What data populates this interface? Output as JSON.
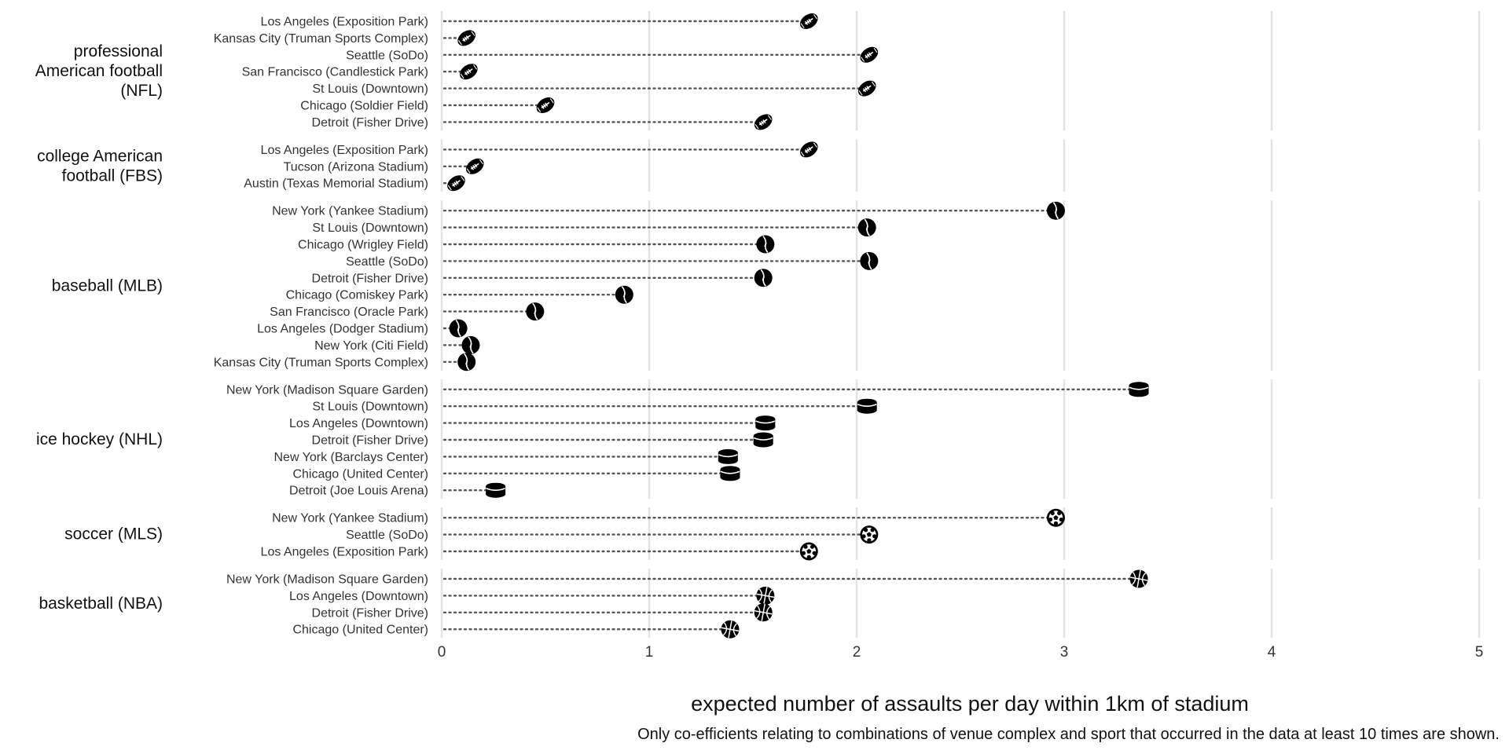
{
  "chart_data": {
    "type": "scatter",
    "style": "dot plot (lollipop) with dotted stems, faceted by sport, sport-ball icons as markers",
    "xlabel": "expected number of assaults per day within 1km of stadium",
    "caption": "Only co-efficients relating to combinations of venue complex and sport that occurred in the data at least 10 times are shown.",
    "xlim": [
      0,
      5
    ],
    "x_ticks": [
      "0",
      "1",
      "2",
      "3",
      "4",
      "5"
    ],
    "grid": "vertical major gridlines",
    "facets": [
      {
        "label": "professional American football (NFL)",
        "label_lines": [
          "professional",
          "American football",
          "(NFL)"
        ],
        "marker": "american-football-icon",
        "points": [
          {
            "venue": "Los Angeles (Exposition Park)",
            "value": 1.77
          },
          {
            "venue": "Kansas City (Truman Sports Complex)",
            "value": 0.12
          },
          {
            "venue": "Seattle (SoDo)",
            "value": 2.06
          },
          {
            "venue": "San Francisco (Candlestick Park)",
            "value": 0.13
          },
          {
            "venue": "St Louis (Downtown)",
            "value": 2.05
          },
          {
            "venue": "Chicago (Soldier Field)",
            "value": 0.5
          },
          {
            "venue": "Detroit (Fisher Drive)",
            "value": 1.55
          }
        ]
      },
      {
        "label": "college American football (FBS)",
        "label_lines": [
          "college American",
          "football (FBS)"
        ],
        "marker": "american-football-icon",
        "points": [
          {
            "venue": "Los Angeles (Exposition Park)",
            "value": 1.77
          },
          {
            "venue": "Tucson (Arizona Stadium)",
            "value": 0.16
          },
          {
            "venue": "Austin (Texas Memorial Stadium)",
            "value": 0.07
          }
        ]
      },
      {
        "label": "baseball (MLB)",
        "label_lines": [
          "baseball (MLB)"
        ],
        "marker": "baseball-icon",
        "points": [
          {
            "venue": "New York (Yankee Stadium)",
            "value": 2.96
          },
          {
            "venue": "St Louis (Downtown)",
            "value": 2.05
          },
          {
            "venue": "Chicago (Wrigley Field)",
            "value": 1.56
          },
          {
            "venue": "Seattle (SoDo)",
            "value": 2.06
          },
          {
            "venue": "Detroit (Fisher Drive)",
            "value": 1.55
          },
          {
            "venue": "Chicago (Comiskey Park)",
            "value": 0.88
          },
          {
            "venue": "San Francisco (Oracle Park)",
            "value": 0.45
          },
          {
            "venue": "Los Angeles (Dodger Stadium)",
            "value": 0.08
          },
          {
            "venue": "New York (Citi Field)",
            "value": 0.14
          },
          {
            "venue": "Kansas City (Truman Sports Complex)",
            "value": 0.12
          }
        ]
      },
      {
        "label": "ice hockey (NHL)",
        "label_lines": [
          "ice hockey (NHL)"
        ],
        "marker": "hockey-puck-icon",
        "points": [
          {
            "venue": "New York (Madison Square Garden)",
            "value": 3.36
          },
          {
            "venue": "St Louis (Downtown)",
            "value": 2.05
          },
          {
            "venue": "Los Angeles (Downtown)",
            "value": 1.56
          },
          {
            "venue": "Detroit (Fisher Drive)",
            "value": 1.55
          },
          {
            "venue": "New York (Barclays Center)",
            "value": 1.38
          },
          {
            "venue": "Chicago (United Center)",
            "value": 1.39
          },
          {
            "venue": "Detroit (Joe Louis Arena)",
            "value": 0.26
          }
        ]
      },
      {
        "label": "soccer (MLS)",
        "label_lines": [
          "soccer (MLS)"
        ],
        "marker": "soccer-ball-icon",
        "points": [
          {
            "venue": "New York (Yankee Stadium)",
            "value": 2.96
          },
          {
            "venue": "Seattle (SoDo)",
            "value": 2.06
          },
          {
            "venue": "Los Angeles (Exposition Park)",
            "value": 1.77
          }
        ]
      },
      {
        "label": "basketball (NBA)",
        "label_lines": [
          "basketball (NBA)"
        ],
        "marker": "basketball-icon",
        "points": [
          {
            "venue": "New York (Madison Square Garden)",
            "value": 3.36
          },
          {
            "venue": "Los Angeles (Downtown)",
            "value": 1.56
          },
          {
            "venue": "Detroit (Fisher Drive)",
            "value": 1.55
          },
          {
            "venue": "Chicago (United Center)",
            "value": 1.39
          }
        ]
      }
    ],
    "colors": {
      "marker": "#000000",
      "stem": "#555555",
      "grid": "#e3e3e3",
      "background": "#ffffff"
    }
  }
}
